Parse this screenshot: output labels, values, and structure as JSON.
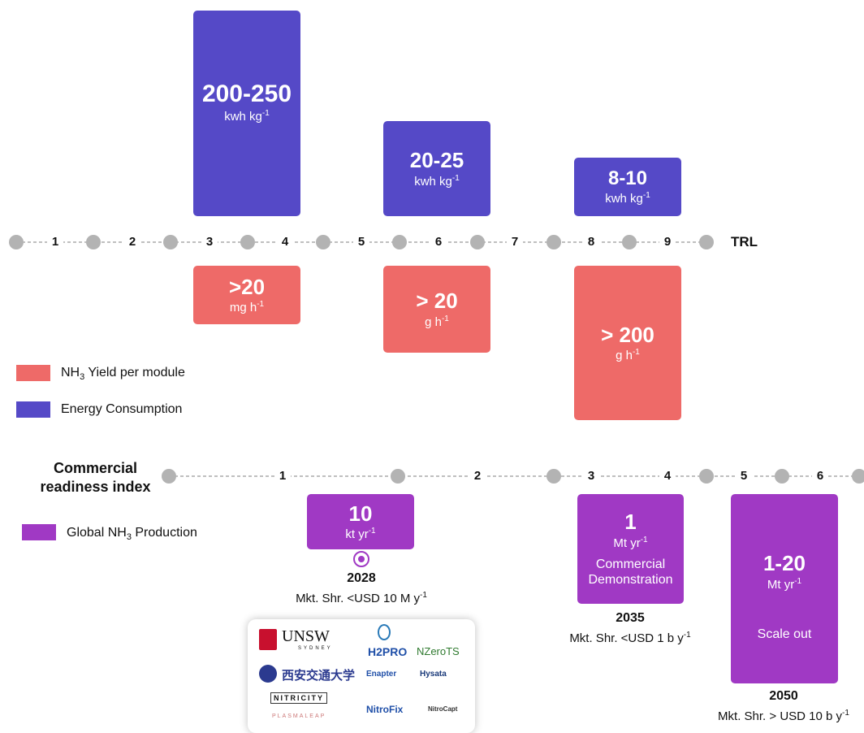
{
  "trl": {
    "label": "TRL",
    "ticks": [
      "1",
      "2",
      "3",
      "4",
      "5",
      "6",
      "7",
      "8",
      "9"
    ]
  },
  "energy": [
    {
      "value": "200-250",
      "unit": "kwh kg",
      "sup": "-1"
    },
    {
      "value": "20-25",
      "unit": "kwh kg",
      "sup": "-1"
    },
    {
      "value": "8-10",
      "unit": "kwh kg",
      "sup": "-1"
    }
  ],
  "yield": [
    {
      "value": ">20",
      "unit": "mg h",
      "sup": "-1"
    },
    {
      "value": "> 20",
      "unit": "g h",
      "sup": "-1"
    },
    {
      "value": "> 200",
      "unit": "g h",
      "sup": "-1"
    }
  ],
  "legend": {
    "yield_label_pre": "NH",
    "yield_label_sub": "3",
    "yield_label_post": " Yield per module",
    "energy_label": "Energy Consumption",
    "production_label_pre": "Global NH",
    "production_label_sub": "3",
    "production_label_post": " Production",
    "colors": {
      "yield": "#ee6a68",
      "energy": "#5549c7",
      "production": "#a039c4"
    }
  },
  "cri": {
    "title_line1": "Commercial",
    "title_line2": "readiness index",
    "ticks": [
      "1",
      "2",
      "3",
      "4",
      "5",
      "6"
    ]
  },
  "production": [
    {
      "value": "10",
      "unit": "kt yr",
      "sup": "-1",
      "year": "2028",
      "mkt": "Mkt. Shr. <USD 10 M y",
      "mkt_sup": "-1"
    },
    {
      "value": "1",
      "unit": "Mt yr",
      "sup": "-1",
      "note_line1": "Commercial",
      "note_line2": "Demonstration",
      "year": "2035",
      "mkt": "Mkt. Shr. <USD 1 b y",
      "mkt_sup": "-1"
    },
    {
      "value": "1-20",
      "unit": "Mt yr",
      "sup": "-1",
      "note_line1": "Scale out",
      "year": "2050",
      "mkt": "Mkt. Shr.  > USD 10 b y",
      "mkt_sup": "-1"
    }
  ],
  "logos": [
    "UNSW",
    "SYDNEY",
    "西安交通大学",
    "NITRICITY",
    "PLASMALEAP",
    "H2PRO",
    "NZeroTS",
    "Enapter",
    "Hysata",
    "NitroFix",
    "NitroCapt"
  ]
}
